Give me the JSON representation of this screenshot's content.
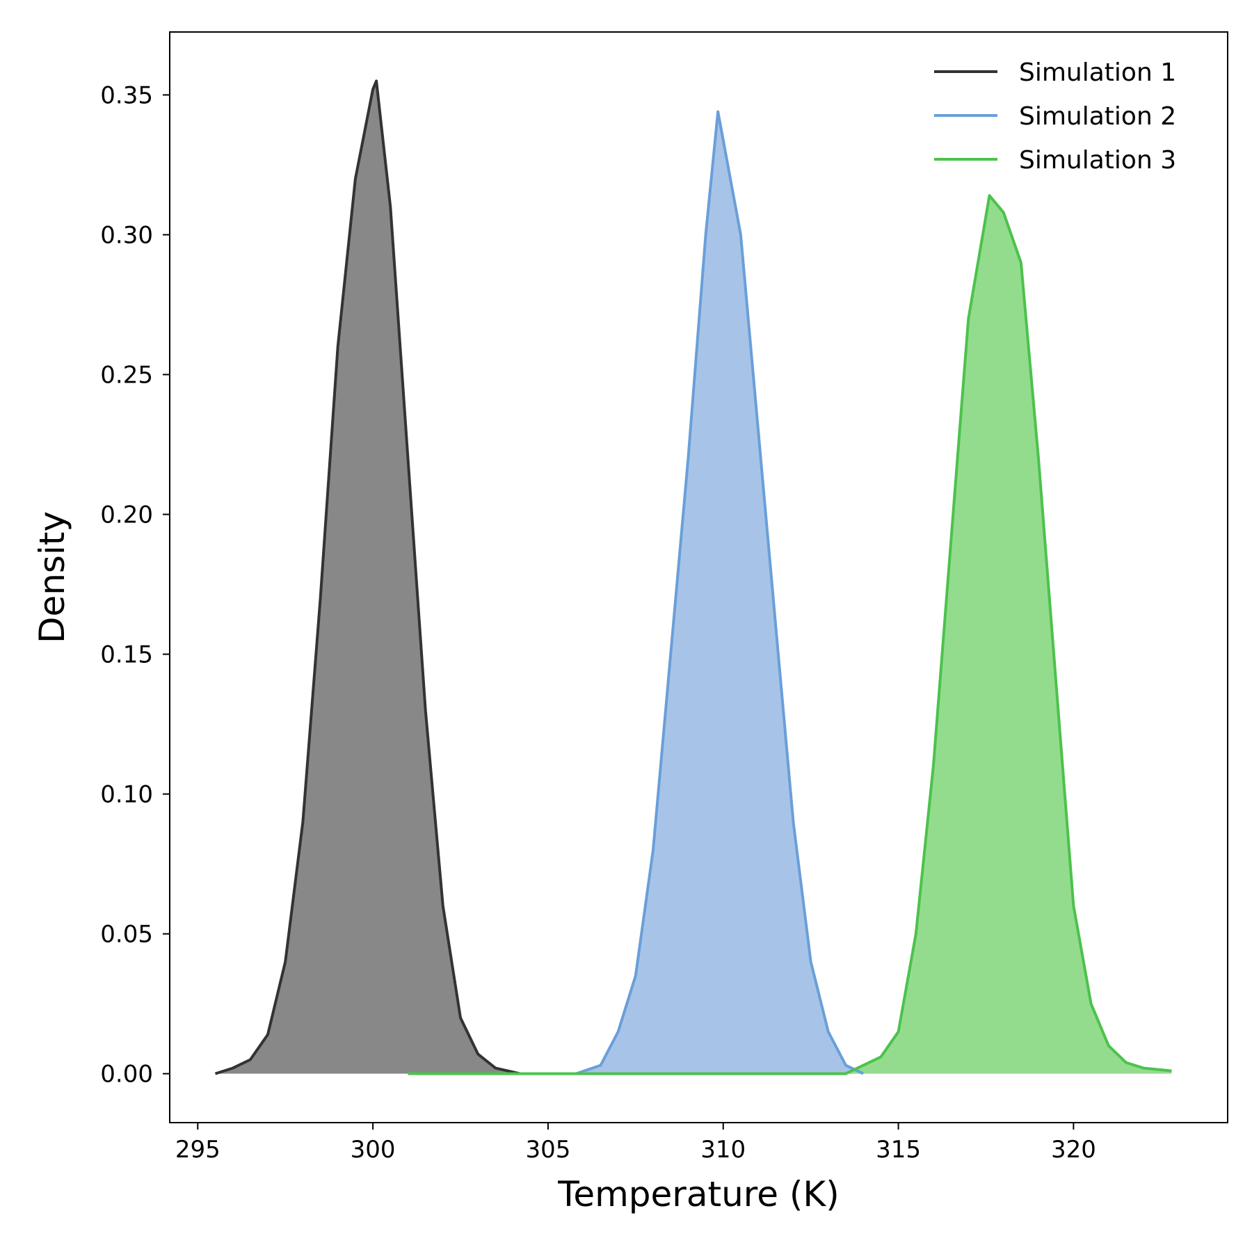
{
  "chart_data": {
    "type": "area",
    "title": "",
    "xlabel": "Temperature (K)",
    "ylabel": "Density",
    "xlim": [
      294.2,
      324.4
    ],
    "ylim": [
      -0.0175,
      0.3725
    ],
    "xticks": [
      295,
      300,
      305,
      310,
      315,
      320
    ],
    "yticks": [
      0.0,
      0.05,
      0.1,
      0.15,
      0.2,
      0.25,
      0.3,
      0.35
    ],
    "xtick_labels": [
      "295",
      "300",
      "305",
      "310",
      "315",
      "320"
    ],
    "ytick_labels": [
      "0.00",
      "0.05",
      "0.10",
      "0.15",
      "0.20",
      "0.25",
      "0.30",
      "0.35"
    ],
    "grid": false,
    "legend_position": "top-right",
    "series": [
      {
        "name": "Simulation 1",
        "color": "#333333",
        "fill": "#888888",
        "x": [
          295.5,
          296.0,
          296.5,
          297.0,
          297.5,
          298.0,
          298.5,
          299.0,
          299.5,
          300.0,
          300.1,
          300.5,
          301.0,
          301.5,
          302.0,
          302.5,
          303.0,
          303.5,
          304.2
        ],
        "y": [
          0.0,
          0.002,
          0.005,
          0.014,
          0.04,
          0.09,
          0.17,
          0.26,
          0.32,
          0.352,
          0.355,
          0.31,
          0.22,
          0.13,
          0.06,
          0.02,
          0.007,
          0.002,
          0.0
        ]
      },
      {
        "name": "Simulation 2",
        "color": "#6a9fd8",
        "fill": "#a7c4e8",
        "x": [
          305.8,
          306.5,
          307.0,
          307.5,
          308.0,
          308.5,
          309.0,
          309.5,
          309.85,
          310.5,
          311.0,
          311.5,
          312.0,
          312.5,
          313.0,
          313.5,
          314.0
        ],
        "y": [
          0.0,
          0.003,
          0.015,
          0.035,
          0.08,
          0.15,
          0.22,
          0.3,
          0.344,
          0.3,
          0.23,
          0.16,
          0.09,
          0.04,
          0.015,
          0.003,
          0.0
        ]
      },
      {
        "name": "Simulation 3",
        "color": "#4cc24c",
        "fill": "#93dc8e",
        "x": [
          301.0,
          313.5,
          314.5,
          315.0,
          315.5,
          316.0,
          316.5,
          317.0,
          317.6,
          318.0,
          318.5,
          319.0,
          319.5,
          320.0,
          320.5,
          321.0,
          321.5,
          322.0,
          322.8
        ],
        "y": [
          0.0,
          0.0,
          0.006,
          0.015,
          0.05,
          0.11,
          0.19,
          0.27,
          0.314,
          0.308,
          0.29,
          0.22,
          0.14,
          0.06,
          0.025,
          0.01,
          0.004,
          0.002,
          0.001
        ]
      }
    ]
  }
}
